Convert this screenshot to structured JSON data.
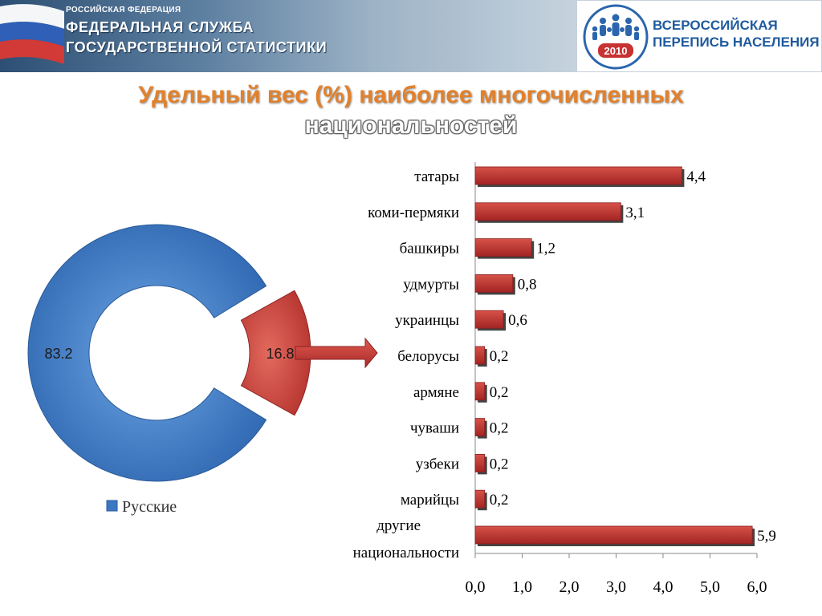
{
  "header": {
    "country": "РОССИЙСКАЯ ФЕДЕРАЦИЯ",
    "agency_line1": "ФЕДЕРАЛЬНАЯ СЛУЖБА",
    "agency_line2": "ГОСУДАРСТВЕННОЙ СТАТИСТИКИ",
    "census_line1": "ВСЕРОССИЙСКАЯ",
    "census_line2": "ПЕРЕПИСЬ НАСЕЛЕНИЯ",
    "census_year": "2010"
  },
  "title": {
    "line1": "Удельный вес (%) наиболее многочисленных",
    "line2": "национальностей"
  },
  "colors": {
    "russians": "#3a78c4",
    "others": "#c93a36",
    "bar": "#c03030",
    "title": "#e2812b"
  },
  "chart_data": [
    {
      "type": "pie",
      "style": "doughnut",
      "slices": [
        {
          "value": 83.2,
          "label": "83.2"
        },
        {
          "value": 16.8,
          "label": "16.8"
        }
      ],
      "legend": [
        "Русские"
      ],
      "legend_position": "bottom"
    },
    {
      "type": "bar",
      "orientation": "horizontal",
      "categories": [
        "татары",
        "коми-пермяки",
        "башкиры",
        "удмурты",
        "украинцы",
        "белорусы",
        "армяне",
        "чуваши",
        "узбеки",
        "марийцы",
        "другие национальности"
      ],
      "values": [
        4.4,
        3.1,
        1.2,
        0.8,
        0.6,
        0.2,
        0.2,
        0.2,
        0.2,
        0.2,
        5.9
      ],
      "value_labels": [
        "4,4",
        "3,1",
        "1,2",
        "0,8",
        "0,6",
        "0,2",
        "0,2",
        "0,2",
        "0,2",
        "0,2",
        "5,9"
      ],
      "xticks": [
        "0,0",
        "1,0",
        "2,0",
        "3,0",
        "4,0",
        "5,0",
        "6,0"
      ],
      "xlim": [
        0,
        6
      ],
      "grid": false
    }
  ]
}
